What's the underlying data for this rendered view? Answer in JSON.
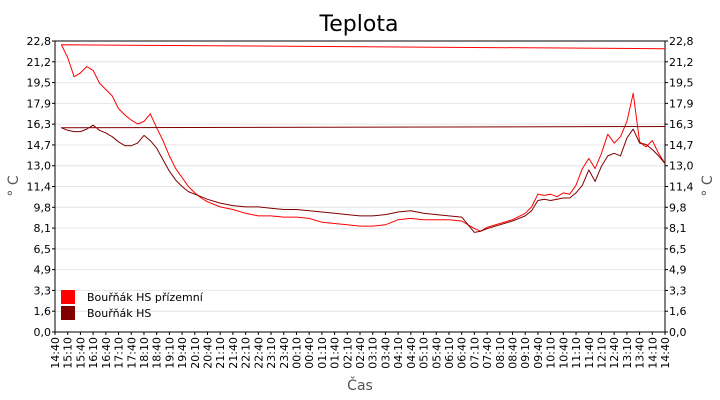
{
  "chart_data": {
    "type": "line",
    "title": "Teplota",
    "xlabel": "Čas",
    "ylabel": "° C",
    "ylim": [
      0.0,
      22.8
    ],
    "y_ticks": [
      "0,0",
      "1,6",
      "3,3",
      "4,9",
      "6,5",
      "8,1",
      "9,8",
      "11,4",
      "13,0",
      "14,7",
      "16,3",
      "17,9",
      "19,5",
      "21,2",
      "22,8"
    ],
    "x_ticks": [
      "14:40",
      "15:10",
      "15:40",
      "16:10",
      "16:40",
      "17:10",
      "17:40",
      "18:10",
      "18:40",
      "19:10",
      "19:40",
      "20:10",
      "20:40",
      "21:10",
      "21:40",
      "22:10",
      "22:40",
      "23:10",
      "23:40",
      "00:10",
      "00:40",
      "01:10",
      "01:40",
      "02:10",
      "02:40",
      "03:10",
      "03:40",
      "04:10",
      "04:40",
      "05:10",
      "05:40",
      "06:10",
      "06:40",
      "07:10",
      "07:40",
      "08:10",
      "08:40",
      "09:10",
      "09:40",
      "10:10",
      "10:40",
      "11:10",
      "11:40",
      "12:10",
      "12:40",
      "13:10",
      "13:40",
      "14:10",
      "14:40"
    ],
    "grid": true,
    "legend_position": "bottom-left",
    "series": [
      {
        "name": "Bouřňák HS přízemní",
        "color": "#ff0000",
        "x": [
          "14:40",
          "14:55",
          "15:10",
          "15:25",
          "15:40",
          "15:55",
          "16:10",
          "16:25",
          "16:40",
          "16:55",
          "17:10",
          "17:25",
          "17:40",
          "17:55",
          "18:10",
          "18:25",
          "18:40",
          "18:55",
          "19:10",
          "19:25",
          "19:40",
          "19:55",
          "20:10",
          "20:25",
          "20:40",
          "21:10",
          "21:40",
          "22:10",
          "22:40",
          "23:10",
          "23:40",
          "00:10",
          "00:40",
          "01:10",
          "01:40",
          "02:10",
          "02:40",
          "03:10",
          "03:40",
          "04:10",
          "04:40",
          "05:10",
          "05:40",
          "06:10",
          "06:40",
          "07:10",
          "07:25",
          "07:40",
          "08:10",
          "08:40",
          "09:10",
          "09:25",
          "09:40",
          "09:55",
          "10:10",
          "10:25",
          "10:40",
          "10:55",
          "11:10",
          "11:25",
          "11:40",
          "11:55",
          "12:10",
          "12:25",
          "12:40",
          "12:55",
          "13:10",
          "13:25",
          "13:40",
          "13:55",
          "14:10",
          "14:25",
          "14:40"
        ],
        "values": [
          22.2,
          22.5,
          21.5,
          20.0,
          20.3,
          20.8,
          20.5,
          19.5,
          19.0,
          18.5,
          17.5,
          17.0,
          16.6,
          16.3,
          16.5,
          17.1,
          16.0,
          15.0,
          13.8,
          12.8,
          12.1,
          11.4,
          10.9,
          10.5,
          10.2,
          9.8,
          9.6,
          9.3,
          9.1,
          9.1,
          9.0,
          9.0,
          8.9,
          8.6,
          8.5,
          8.4,
          8.3,
          8.3,
          8.4,
          8.8,
          8.9,
          8.8,
          8.8,
          8.8,
          8.7,
          8.1,
          7.9,
          8.2,
          8.5,
          8.8,
          9.3,
          9.8,
          10.8,
          10.7,
          10.8,
          10.6,
          10.9,
          10.8,
          11.5,
          12.8,
          13.6,
          12.8,
          14.0,
          15.5,
          14.8,
          15.3,
          16.5,
          18.7,
          14.9,
          14.5,
          15.0,
          14.0,
          13.2
        ]
      },
      {
        "name": "Bouřňák HS",
        "color": "#800000",
        "x": [
          "14:40",
          "14:55",
          "15:10",
          "15:25",
          "15:40",
          "15:55",
          "16:10",
          "16:25",
          "16:40",
          "16:55",
          "17:10",
          "17:25",
          "17:40",
          "17:55",
          "18:10",
          "18:25",
          "18:40",
          "18:55",
          "19:10",
          "19:25",
          "19:40",
          "19:55",
          "20:10",
          "20:25",
          "20:40",
          "21:10",
          "21:40",
          "22:10",
          "22:40",
          "23:10",
          "23:40",
          "00:10",
          "00:40",
          "01:10",
          "01:40",
          "02:10",
          "02:40",
          "03:10",
          "03:40",
          "04:10",
          "04:40",
          "05:10",
          "05:40",
          "06:10",
          "06:40",
          "07:10",
          "07:25",
          "07:40",
          "08:10",
          "08:40",
          "09:10",
          "09:25",
          "09:40",
          "09:55",
          "10:10",
          "10:25",
          "10:40",
          "10:55",
          "11:10",
          "11:25",
          "11:40",
          "11:55",
          "12:10",
          "12:25",
          "12:40",
          "12:55",
          "13:10",
          "13:25",
          "13:40",
          "13:55",
          "14:10",
          "14:25",
          "14:40"
        ],
        "values": [
          16.1,
          16.0,
          15.8,
          15.7,
          15.7,
          15.9,
          16.2,
          15.8,
          15.6,
          15.3,
          14.9,
          14.6,
          14.6,
          14.8,
          15.4,
          15.0,
          14.4,
          13.5,
          12.6,
          11.9,
          11.4,
          11.0,
          10.8,
          10.6,
          10.4,
          10.1,
          9.9,
          9.8,
          9.8,
          9.7,
          9.6,
          9.6,
          9.5,
          9.4,
          9.3,
          9.2,
          9.1,
          9.1,
          9.2,
          9.4,
          9.5,
          9.3,
          9.2,
          9.1,
          9.0,
          7.8,
          7.9,
          8.1,
          8.4,
          8.7,
          9.1,
          9.5,
          10.3,
          10.4,
          10.3,
          10.4,
          10.5,
          10.5,
          10.9,
          11.5,
          12.7,
          11.8,
          13.0,
          13.8,
          14.0,
          13.8,
          15.2,
          15.9,
          14.8,
          14.7,
          14.3,
          13.8,
          13.2
        ]
      }
    ]
  }
}
